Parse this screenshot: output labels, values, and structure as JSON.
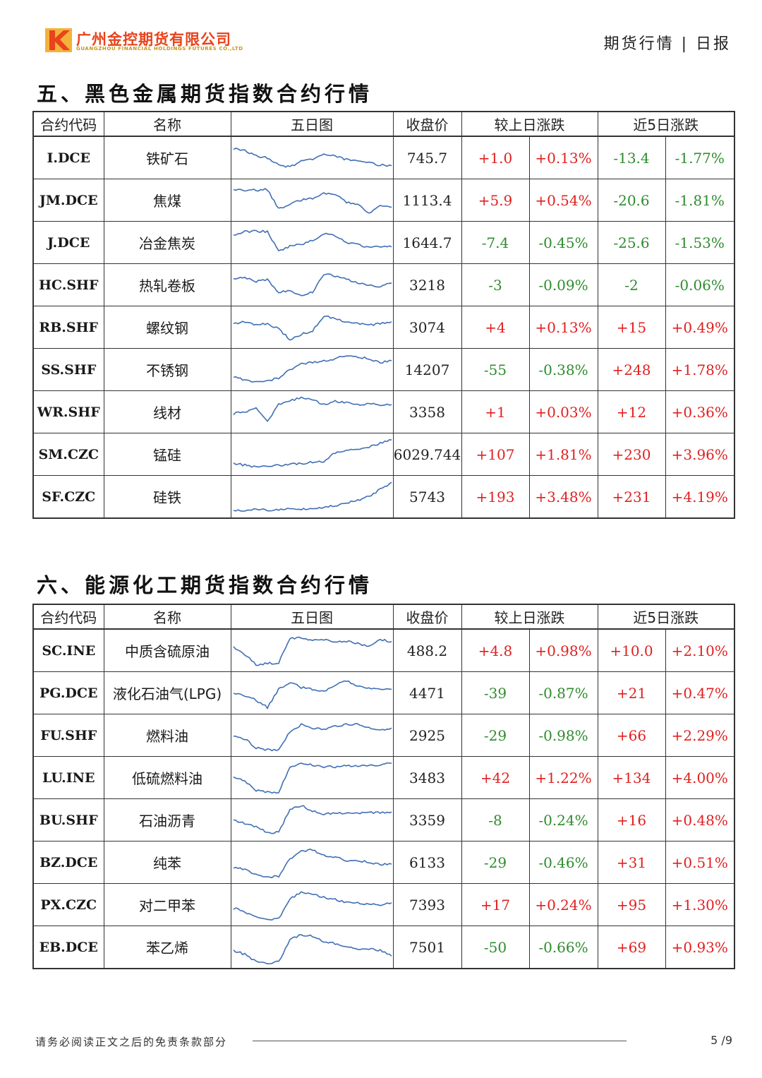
{
  "header": {
    "company_cn": "广州金控期货有限公司",
    "company_en": "GUANGZHOU FINANCIAL HOLDINGS FUTURES CO.,LTD",
    "report_type": "期货行情 | 日报",
    "brand_color": "#e8431c"
  },
  "columns": {
    "code": "合约代码",
    "name": "名称",
    "chart": "五日图",
    "close": "收盘价",
    "daily": "较上日涨跌",
    "five_day": "近5日涨跌"
  },
  "section5": {
    "title": "五、黑色金属期货指数合约行情",
    "rows": [
      {
        "code": "I.DCE",
        "name": "铁矿石",
        "close": "745.7",
        "chg": "+1.0",
        "pct": "+0.13%",
        "chg5": "-13.4",
        "pct5": "-1.77%"
      },
      {
        "code": "JM.DCE",
        "name": "焦煤",
        "close": "1113.4",
        "chg": "+5.9",
        "pct": "+0.54%",
        "chg5": "-20.6",
        "pct5": "-1.81%"
      },
      {
        "code": "J.DCE",
        "name": "冶金焦炭",
        "close": "1644.7",
        "chg": "-7.4",
        "pct": "-0.45%",
        "chg5": "-25.6",
        "pct5": "-1.53%"
      },
      {
        "code": "HC.SHF",
        "name": "热轧卷板",
        "close": "3218",
        "chg": "-3",
        "pct": "-0.09%",
        "chg5": "-2",
        "pct5": "-0.06%"
      },
      {
        "code": "RB.SHF",
        "name": "螺纹钢",
        "close": "3074",
        "chg": "+4",
        "pct": "+0.13%",
        "chg5": "+15",
        "pct5": "+0.49%"
      },
      {
        "code": "SS.SHF",
        "name": "不锈钢",
        "close": "14207",
        "chg": "-55",
        "pct": "-0.38%",
        "chg5": "+248",
        "pct5": "+1.78%"
      },
      {
        "code": "WR.SHF",
        "name": "线材",
        "close": "3358",
        "chg": "+1",
        "pct": "+0.03%",
        "chg5": "+12",
        "pct5": "+0.36%"
      },
      {
        "code": "SM.CZC",
        "name": "锰硅",
        "close": "6029.744",
        "chg": "+107",
        "pct": "+1.81%",
        "chg5": "+230",
        "pct5": "+3.96%"
      },
      {
        "code": "SF.CZC",
        "name": "硅铁",
        "close": "5743",
        "chg": "+193",
        "pct": "+3.48%",
        "chg5": "+231",
        "pct5": "+4.19%"
      }
    ]
  },
  "section6": {
    "title": "六、能源化工期货指数合约行情",
    "rows": [
      {
        "code": "SC.INE",
        "name": "中质含硫原油",
        "close": "488.2",
        "chg": "+4.8",
        "pct": "+0.98%",
        "chg5": "+10.0",
        "pct5": "+2.10%"
      },
      {
        "code": "PG.DCE",
        "name": "液化石油气(LPG)",
        "close": "4471",
        "chg": "-39",
        "pct": "-0.87%",
        "chg5": "+21",
        "pct5": "+0.47%"
      },
      {
        "code": "FU.SHF",
        "name": "燃料油",
        "close": "2925",
        "chg": "-29",
        "pct": "-0.98%",
        "chg5": "+66",
        "pct5": "+2.29%"
      },
      {
        "code": "LU.INE",
        "name": "低硫燃料油",
        "close": "3483",
        "chg": "+42",
        "pct": "+1.22%",
        "chg5": "+134",
        "pct5": "+4.00%"
      },
      {
        "code": "BU.SHF",
        "name": "石油沥青",
        "close": "3359",
        "chg": "-8",
        "pct": "-0.24%",
        "chg5": "+16",
        "pct5": "+0.48%"
      },
      {
        "code": "BZ.DCE",
        "name": "纯苯",
        "close": "6133",
        "chg": "-29",
        "pct": "-0.46%",
        "chg5": "+31",
        "pct5": "+0.51%"
      },
      {
        "code": "PX.CZC",
        "name": "对二甲苯",
        "close": "7393",
        "chg": "+17",
        "pct": "+0.24%",
        "chg5": "+95",
        "pct5": "+1.30%"
      },
      {
        "code": "EB.DCE",
        "name": "苯乙烯",
        "close": "7501",
        "chg": "-50",
        "pct": "-0.66%",
        "chg5": "+69",
        "pct5": "+0.93%"
      }
    ]
  },
  "sparklines": {
    "line_color": "#3f6fb5",
    "shapes": {
      "I.DCE": [
        0.25,
        0.3,
        0.45,
        0.5,
        0.7,
        0.75,
        0.6,
        0.55,
        0.4,
        0.45,
        0.55,
        0.6,
        0.65,
        0.7,
        0.72
      ],
      "JM.DCE": [
        0.2,
        0.25,
        0.22,
        0.2,
        0.75,
        0.6,
        0.5,
        0.45,
        0.3,
        0.35,
        0.55,
        0.6,
        0.85,
        0.65,
        0.7
      ],
      "J.DCE": [
        0.3,
        0.2,
        0.18,
        0.2,
        0.75,
        0.6,
        0.55,
        0.45,
        0.25,
        0.3,
        0.5,
        0.55,
        0.65,
        0.6,
        0.62
      ],
      "HC.SHF": [
        0.35,
        0.3,
        0.4,
        0.35,
        0.7,
        0.65,
        0.8,
        0.7,
        0.2,
        0.25,
        0.35,
        0.45,
        0.5,
        0.55,
        0.45
      ],
      "RB.SHF": [
        0.4,
        0.35,
        0.45,
        0.4,
        0.55,
        0.85,
        0.7,
        0.6,
        0.2,
        0.25,
        0.35,
        0.4,
        0.45,
        0.4,
        0.35
      ],
      "SS.SHF": [
        0.7,
        0.8,
        0.85,
        0.8,
        0.75,
        0.5,
        0.35,
        0.3,
        0.25,
        0.2,
        0.1,
        0.15,
        0.2,
        0.3,
        0.25
      ],
      "WR.SHF": [
        0.55,
        0.5,
        0.4,
        0.75,
        0.3,
        0.2,
        0.1,
        0.15,
        0.3,
        0.2,
        0.25,
        0.3,
        0.28,
        0.3,
        0.3
      ],
      "SM.CZC": [
        0.75,
        0.8,
        0.85,
        0.82,
        0.8,
        0.78,
        0.75,
        0.72,
        0.7,
        0.45,
        0.4,
        0.35,
        0.3,
        0.2,
        0.1
      ],
      "SF.CZC": [
        0.88,
        0.9,
        0.85,
        0.87,
        0.86,
        0.85,
        0.84,
        0.82,
        0.8,
        0.75,
        0.68,
        0.6,
        0.5,
        0.3,
        0.1
      ],
      "SC.INE": [
        0.4,
        0.6,
        0.9,
        0.85,
        0.85,
        0.15,
        0.15,
        0.2,
        0.2,
        0.25,
        0.25,
        0.3,
        0.4,
        0.2,
        0.25
      ],
      "PG.DCE": [
        0.5,
        0.6,
        0.7,
        0.9,
        0.4,
        0.2,
        0.35,
        0.4,
        0.45,
        0.3,
        0.15,
        0.3,
        0.35,
        0.4,
        0.4
      ],
      "FU.SHF": [
        0.5,
        0.6,
        0.85,
        0.9,
        0.9,
        0.4,
        0.2,
        0.3,
        0.35,
        0.25,
        0.2,
        0.2,
        0.3,
        0.35,
        0.3
      ],
      "LU.INE": [
        0.5,
        0.6,
        0.85,
        0.9,
        0.9,
        0.2,
        0.1,
        0.15,
        0.2,
        0.2,
        0.18,
        0.18,
        0.15,
        0.15,
        0.1
      ],
      "BU.SHF": [
        0.5,
        0.6,
        0.7,
        0.85,
        0.85,
        0.2,
        0.1,
        0.25,
        0.35,
        0.3,
        0.3,
        0.32,
        0.3,
        0.3,
        0.28
      ],
      "BZ.DCE": [
        0.65,
        0.7,
        0.85,
        0.9,
        0.9,
        0.4,
        0.2,
        0.15,
        0.3,
        0.35,
        0.45,
        0.45,
        0.5,
        0.55,
        0.55
      ],
      "PX.CZC": [
        0.6,
        0.7,
        0.85,
        0.9,
        0.9,
        0.35,
        0.15,
        0.2,
        0.3,
        0.35,
        0.45,
        0.45,
        0.5,
        0.5,
        0.45
      ],
      "EB.DCE": [
        0.6,
        0.7,
        0.9,
        0.95,
        0.9,
        0.3,
        0.15,
        0.2,
        0.35,
        0.4,
        0.5,
        0.55,
        0.55,
        0.6,
        0.75
      ]
    }
  },
  "footer": {
    "disclaimer": "请务必阅读正文之后的免责条款部分",
    "page": "5 /9"
  }
}
